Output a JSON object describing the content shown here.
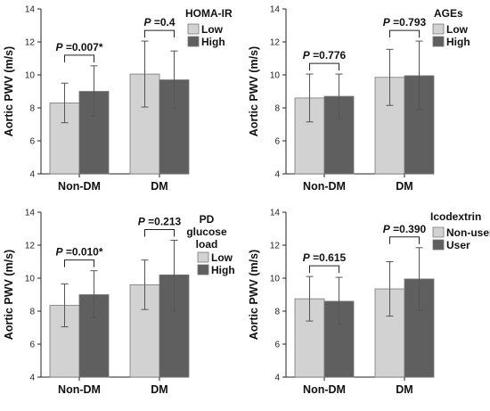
{
  "colors": {
    "low": "#d2d2d2",
    "high": "#5f5f5f",
    "axis": "#222222",
    "err": "#555555"
  },
  "chart_data": [
    {
      "type": "bar",
      "ylabel": "Aortic PWV (m/s)",
      "ylim": [
        4,
        14
      ],
      "yticks": [
        4,
        6,
        8,
        10,
        12,
        14
      ],
      "categories": [
        "Non-DM",
        "DM"
      ],
      "legend_title": [
        "HOMA-IR"
      ],
      "series": [
        {
          "name": "Low",
          "values": [
            8.3,
            10.05
          ],
          "err_low": [
            7.1,
            8.05
          ],
          "err_high": [
            9.5,
            12.05
          ]
        },
        {
          "name": "High",
          "values": [
            9.0,
            9.7
          ],
          "err_low": [
            7.5,
            8.0
          ],
          "err_high": [
            10.55,
            11.45
          ]
        }
      ],
      "annotations": [
        {
          "prefix": "P",
          "text": " =0.007*"
        },
        {
          "prefix": "P",
          "text": " =0.4"
        }
      ]
    },
    {
      "type": "bar",
      "ylabel": "Aortic PWV (m/s)",
      "ylim": [
        4,
        14
      ],
      "yticks": [
        4,
        6,
        8,
        10,
        12,
        14
      ],
      "categories": [
        "Non-DM",
        "DM"
      ],
      "legend_title": [
        "AGEs"
      ],
      "series": [
        {
          "name": "Low",
          "values": [
            8.6,
            9.85
          ],
          "err_low": [
            7.15,
            8.15
          ],
          "err_high": [
            10.05,
            11.55
          ]
        },
        {
          "name": "High",
          "values": [
            8.7,
            9.95
          ],
          "err_low": [
            7.35,
            7.9
          ],
          "err_high": [
            10.05,
            12.05
          ]
        }
      ],
      "annotations": [
        {
          "prefix": "P",
          "text": " =0.776"
        },
        {
          "prefix": "P",
          "text": " =0.793"
        }
      ]
    },
    {
      "type": "bar",
      "ylabel": "Aortic PWV (m/s)",
      "ylim": [
        4,
        14
      ],
      "yticks": [
        4,
        6,
        8,
        10,
        12,
        14
      ],
      "categories": [
        "Non-DM",
        "DM"
      ],
      "legend_title": [
        "PD",
        "glucose",
        "load"
      ],
      "series": [
        {
          "name": "Low",
          "values": [
            8.35,
            9.6
          ],
          "err_low": [
            7.05,
            8.1
          ],
          "err_high": [
            9.65,
            11.1
          ]
        },
        {
          "name": "High",
          "values": [
            9.0,
            10.2
          ],
          "err_low": [
            7.6,
            8.05
          ],
          "err_high": [
            10.45,
            12.3
          ]
        }
      ],
      "annotations": [
        {
          "prefix": "P",
          "text": " =0.010*"
        },
        {
          "prefix": "P",
          "text": " =0.213"
        }
      ]
    },
    {
      "type": "bar",
      "ylabel": "Aortic PWV (m/s)",
      "ylim": [
        4,
        14
      ],
      "yticks": [
        4,
        6,
        8,
        10,
        12,
        14
      ],
      "categories": [
        "Non-DM",
        "DM"
      ],
      "legend_title": [
        "Icodextrin"
      ],
      "series": [
        {
          "name": "Non-user",
          "values": [
            8.75,
            9.35
          ],
          "err_low": [
            7.4,
            7.7
          ],
          "err_high": [
            10.1,
            11.0
          ]
        },
        {
          "name": "User",
          "values": [
            8.6,
            9.95
          ],
          "err_low": [
            7.2,
            8.05
          ],
          "err_high": [
            10.05,
            11.85
          ]
        }
      ],
      "annotations": [
        {
          "prefix": "P",
          "text": " =0.615"
        },
        {
          "prefix": "P",
          "text": " =0.390"
        }
      ]
    }
  ]
}
